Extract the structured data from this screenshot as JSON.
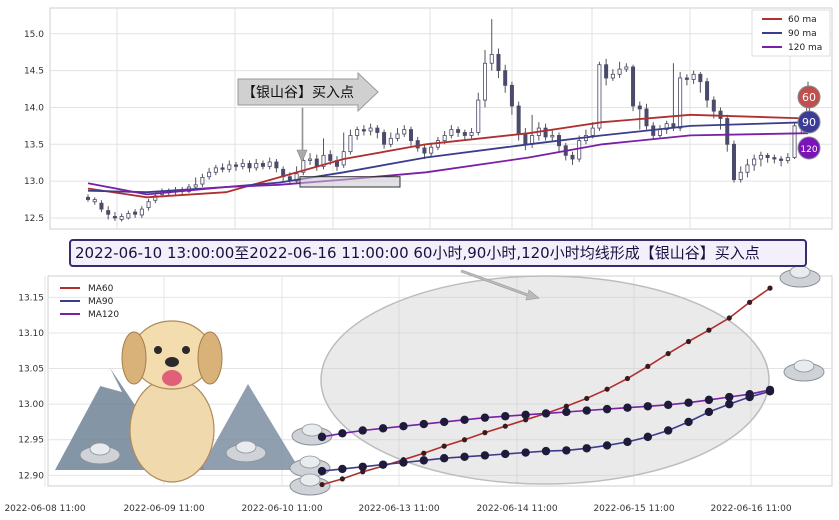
{
  "banner": {
    "text": "2022-06-10 13:00:00至2022-06-16 11:00:00 60小时,90小时,120小时均线形成【银山谷】买入点"
  },
  "callout": {
    "text": "【银山谷】买入点"
  },
  "badges": [
    {
      "label": "60",
      "color": "#c0504d"
    },
    {
      "label": "90",
      "color": "#3b3b9a"
    },
    {
      "label": "120",
      "color": "#7a14b8"
    }
  ],
  "colors": {
    "ma60": "#b03030",
    "ma90": "#3c3c8c",
    "ma120": "#7a1fa8"
  },
  "chart_data": [
    {
      "type": "candlestick",
      "yticks": [
        12.5,
        13.0,
        13.5,
        14.0,
        14.5,
        15.0
      ],
      "ylim": [
        12.35,
        15.35
      ],
      "legend": {
        "position": "top-right",
        "entries": [
          {
            "name": "60 ma",
            "color": "#b03030"
          },
          {
            "name": "90 ma",
            "color": "#3c3c8c"
          },
          {
            "name": "120 ma",
            "color": "#7a1fa8"
          }
        ]
      },
      "candles": [
        [
          12.78,
          12.75,
          12.82,
          12.72
        ],
        [
          12.72,
          12.75,
          12.78,
          12.68
        ],
        [
          12.7,
          12.62,
          12.74,
          12.58
        ],
        [
          12.6,
          12.55,
          12.66,
          12.48
        ],
        [
          12.52,
          12.5,
          12.58,
          12.46
        ],
        [
          12.48,
          12.52,
          12.56,
          12.45
        ],
        [
          12.5,
          12.56,
          12.6,
          12.48
        ],
        [
          12.58,
          12.55,
          12.62,
          12.5
        ],
        [
          12.54,
          12.62,
          12.66,
          12.5
        ],
        [
          12.64,
          12.72,
          12.76,
          12.6
        ],
        [
          12.74,
          12.8,
          12.84,
          12.7
        ],
        [
          12.82,
          12.86,
          12.9,
          12.78
        ],
        [
          12.86,
          12.84,
          12.9,
          12.8
        ],
        [
          12.85,
          12.88,
          12.92,
          12.8
        ],
        [
          12.88,
          12.86,
          12.92,
          12.82
        ],
        [
          12.86,
          12.92,
          12.96,
          12.84
        ],
        [
          12.92,
          12.95,
          13.05,
          12.88
        ],
        [
          12.96,
          13.05,
          13.1,
          12.92
        ],
        [
          13.06,
          13.12,
          13.18,
          13.02
        ],
        [
          13.12,
          13.18,
          13.22,
          13.08
        ],
        [
          13.18,
          13.16,
          13.24,
          13.12
        ],
        [
          13.16,
          13.22,
          13.28,
          13.12
        ],
        [
          13.22,
          13.2,
          13.26,
          13.14
        ],
        [
          13.2,
          13.24,
          13.3,
          13.16
        ],
        [
          13.24,
          13.18,
          13.28,
          13.12
        ],
        [
          13.18,
          13.24,
          13.3,
          13.14
        ],
        [
          13.24,
          13.2,
          13.28,
          13.16
        ],
        [
          13.2,
          13.26,
          13.32,
          13.16
        ],
        [
          13.26,
          13.18,
          13.3,
          13.12
        ],
        [
          13.16,
          13.06,
          13.2,
          13.0
        ],
        [
          13.06,
          13.0,
          13.12,
          12.95
        ],
        [
          13.0,
          13.1,
          13.2,
          12.96
        ],
        [
          13.12,
          13.28,
          13.35,
          13.08
        ],
        [
          13.28,
          13.3,
          13.38,
          13.22
        ],
        [
          13.3,
          13.2,
          13.36,
          13.14
        ],
        [
          13.2,
          13.35,
          13.58,
          13.16
        ],
        [
          13.36,
          13.28,
          13.42,
          13.22
        ],
        [
          13.28,
          13.2,
          13.34,
          13.14
        ],
        [
          13.22,
          13.4,
          13.66,
          13.18
        ],
        [
          13.4,
          13.62,
          13.7,
          13.36
        ],
        [
          13.62,
          13.7,
          13.74,
          13.56
        ],
        [
          13.7,
          13.68,
          13.76,
          13.62
        ],
        [
          13.68,
          13.72,
          13.78,
          13.62
        ],
        [
          13.72,
          13.66,
          13.76,
          13.58
        ],
        [
          13.66,
          13.5,
          13.7,
          13.44
        ],
        [
          13.5,
          13.58,
          13.66,
          13.46
        ],
        [
          13.58,
          13.64,
          13.72,
          13.54
        ],
        [
          13.64,
          13.7,
          13.76,
          13.6
        ],
        [
          13.7,
          13.55,
          13.74,
          13.48
        ],
        [
          13.55,
          13.45,
          13.6,
          13.4
        ],
        [
          13.45,
          13.38,
          13.5,
          13.3
        ],
        [
          13.38,
          13.46,
          13.52,
          13.32
        ],
        [
          13.46,
          13.55,
          13.6,
          13.42
        ],
        [
          13.55,
          13.62,
          13.68,
          13.5
        ],
        [
          13.62,
          13.7,
          13.76,
          13.58
        ],
        [
          13.7,
          13.66,
          13.74,
          13.6
        ],
        [
          13.66,
          13.62,
          13.7,
          13.56
        ],
        [
          13.62,
          13.66,
          13.72,
          13.58
        ],
        [
          13.66,
          14.1,
          14.2,
          13.62
        ],
        [
          14.1,
          14.6,
          14.78,
          14.0
        ],
        [
          14.6,
          14.72,
          15.2,
          14.5
        ],
        [
          14.72,
          14.5,
          14.8,
          14.4
        ],
        [
          14.5,
          14.3,
          14.58,
          14.2
        ],
        [
          14.3,
          14.02,
          14.35,
          13.9
        ],
        [
          14.02,
          13.65,
          14.08,
          13.55
        ],
        [
          13.65,
          13.5,
          13.72,
          13.42
        ],
        [
          13.5,
          13.62,
          13.9,
          13.45
        ],
        [
          13.62,
          13.72,
          13.8,
          13.55
        ],
        [
          13.72,
          13.6,
          13.78,
          13.55
        ],
        [
          13.6,
          13.62,
          13.7,
          13.55
        ],
        [
          13.62,
          13.48,
          13.66,
          13.4
        ],
        [
          13.48,
          13.35,
          13.52,
          13.28
        ],
        [
          13.35,
          13.3,
          13.4,
          13.22
        ],
        [
          13.3,
          13.55,
          13.62,
          13.26
        ],
        [
          13.55,
          13.62,
          13.7,
          13.5
        ],
        [
          13.62,
          13.72,
          13.8,
          13.58
        ],
        [
          13.72,
          14.58,
          14.62,
          13.68
        ],
        [
          14.58,
          14.4,
          14.66,
          14.3
        ],
        [
          14.4,
          14.45,
          14.52,
          14.36
        ],
        [
          14.45,
          14.52,
          14.62,
          14.4
        ],
        [
          14.52,
          14.55,
          14.6,
          14.48
        ],
        [
          14.55,
          14.02,
          14.58,
          13.95
        ],
        [
          14.02,
          13.98,
          14.08,
          13.7
        ],
        [
          13.98,
          13.75,
          14.05,
          13.7
        ],
        [
          13.75,
          13.62,
          13.8,
          13.56
        ],
        [
          13.62,
          13.7,
          13.76,
          13.58
        ],
        [
          13.7,
          13.78,
          13.82,
          13.64
        ],
        [
          13.78,
          13.72,
          14.6,
          13.68
        ],
        [
          13.72,
          14.4,
          14.48,
          13.68
        ],
        [
          14.4,
          14.38,
          14.45,
          14.3
        ],
        [
          14.38,
          14.45,
          14.5,
          14.32
        ],
        [
          14.45,
          14.35,
          14.48,
          14.2
        ],
        [
          14.35,
          14.1,
          14.4,
          14.0
        ],
        [
          14.1,
          13.95,
          14.15,
          13.85
        ],
        [
          13.95,
          13.85,
          14.0,
          13.7
        ],
        [
          13.85,
          13.5,
          13.9,
          13.4
        ],
        [
          13.5,
          13.02,
          13.55,
          12.98
        ],
        [
          13.02,
          13.12,
          13.2,
          12.98
        ],
        [
          13.12,
          13.22,
          13.3,
          13.05
        ],
        [
          13.22,
          13.3,
          13.36,
          13.14
        ],
        [
          13.3,
          13.35,
          13.4,
          13.2
        ],
        [
          13.35,
          13.32,
          13.38,
          13.25
        ],
        [
          13.32,
          13.3,
          13.36,
          13.24
        ],
        [
          13.3,
          13.28,
          13.34,
          13.2
        ],
        [
          13.28,
          13.32,
          13.38,
          13.24
        ],
        [
          13.32,
          13.75,
          13.8,
          13.3
        ],
        [
          13.75,
          13.72,
          13.82,
          13.66
        ],
        [
          13.72,
          14.0,
          14.35,
          13.7
        ]
      ],
      "ma60": [
        [
          0,
          12.9
        ],
        [
          20,
          12.78
        ],
        [
          47,
          12.85
        ],
        [
          65,
          13.05
        ],
        [
          87,
          13.3
        ],
        [
          115,
          13.5
        ],
        [
          150,
          13.65
        ],
        [
          175,
          13.8
        ],
        [
          205,
          13.9
        ],
        [
          245,
          13.85
        ]
      ],
      "ma90": [
        [
          0,
          12.87
        ],
        [
          20,
          12.85
        ],
        [
          47,
          12.92
        ],
        [
          65,
          12.98
        ],
        [
          87,
          13.12
        ],
        [
          115,
          13.32
        ],
        [
          150,
          13.5
        ],
        [
          175,
          13.62
        ],
        [
          205,
          13.75
        ],
        [
          245,
          13.8
        ]
      ],
      "ma120": [
        [
          0,
          12.97
        ],
        [
          20,
          12.82
        ],
        [
          47,
          12.92
        ],
        [
          65,
          12.95
        ],
        [
          87,
          13.02
        ],
        [
          115,
          13.12
        ],
        [
          150,
          13.32
        ],
        [
          175,
          13.5
        ],
        [
          205,
          13.62
        ],
        [
          245,
          13.65
        ]
      ]
    },
    {
      "type": "line",
      "xticks": [
        "2022-06-08 11:00",
        "2022-06-09 11:00",
        "2022-06-10 11:00",
        "2022-06-13 11:00",
        "2022-06-14 11:00",
        "2022-06-15 11:00",
        "2022-06-16 11:00"
      ],
      "yticks": [
        12.9,
        12.95,
        13.0,
        13.05,
        13.1,
        13.15
      ],
      "ylim": [
        12.885,
        13.18
      ],
      "legend": {
        "position": "top-left",
        "entries": [
          {
            "name": "MA60",
            "color": "#b03030"
          },
          {
            "name": "MA90",
            "color": "#3c3c8c"
          },
          {
            "name": "MA120",
            "color": "#7a1fa8"
          }
        ]
      },
      "series": [
        {
          "name": "MA60",
          "values": [
            12.887,
            12.895,
            12.905,
            12.913,
            12.922,
            12.931,
            12.941,
            12.95,
            12.96,
            12.969,
            12.978,
            12.987,
            12.997,
            13.008,
            13.021,
            13.036,
            13.053,
            13.071,
            13.088,
            13.104,
            13.121,
            13.143,
            13.163
          ]
        },
        {
          "name": "MA90",
          "values": [
            12.906,
            12.909,
            12.912,
            12.915,
            12.918,
            12.921,
            12.924,
            12.926,
            12.928,
            12.93,
            12.932,
            12.934,
            12.935,
            12.938,
            12.942,
            12.947,
            12.954,
            12.963,
            12.975,
            12.989,
            13.0,
            13.01,
            13.018
          ]
        },
        {
          "name": "MA120",
          "values": [
            12.954,
            12.959,
            12.963,
            12.966,
            12.969,
            12.972,
            12.975,
            12.978,
            12.981,
            12.983,
            12.985,
            12.987,
            12.989,
            12.991,
            12.993,
            12.995,
            12.997,
            12.999,
            13.002,
            13.006,
            13.01,
            13.014,
            13.02
          ]
        }
      ]
    }
  ]
}
